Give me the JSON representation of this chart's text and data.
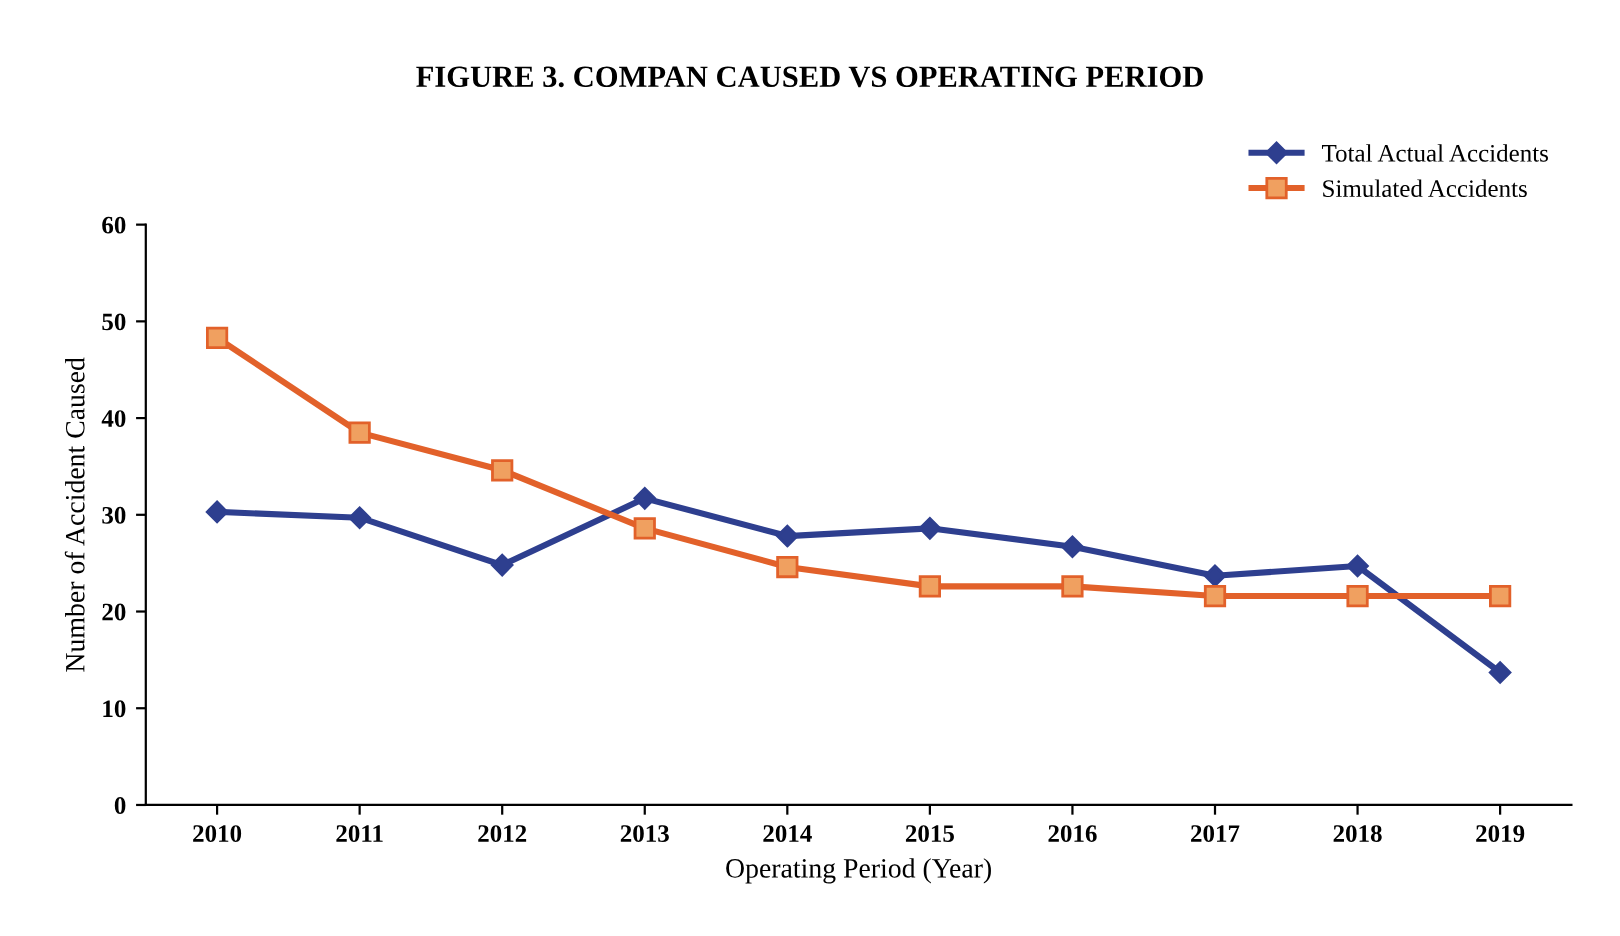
{
  "chart_data": {
    "type": "line",
    "title": "FIGURE 3. COMPAN CAUSED VS OPERATING PERIOD",
    "xlabel": "Operating Period (Year)",
    "ylabel": "Number of Accident Caused",
    "categories": [
      "2010",
      "2011",
      "2012",
      "2013",
      "2014",
      "2015",
      "2016",
      "2017",
      "2018",
      "2019"
    ],
    "series": [
      {
        "name": "Total Actual Accidents",
        "color": "#2e3f8f",
        "marker": "diamond",
        "values": [
          30.3,
          29.7,
          24.8,
          31.7,
          27.8,
          28.6,
          26.7,
          23.7,
          24.7,
          13.7
        ]
      },
      {
        "name": "Simulated Accidents",
        "color": "#e2612a",
        "marker": "square",
        "values": [
          48.3,
          38.5,
          34.6,
          28.6,
          24.6,
          22.6,
          22.6,
          21.6,
          21.6,
          21.6
        ]
      }
    ],
    "ylim": [
      0,
      60
    ],
    "yticks": [
      0,
      10,
      20,
      30,
      40,
      50,
      60
    ],
    "grid": false,
    "legend": "top right",
    "line_style": "solid"
  }
}
